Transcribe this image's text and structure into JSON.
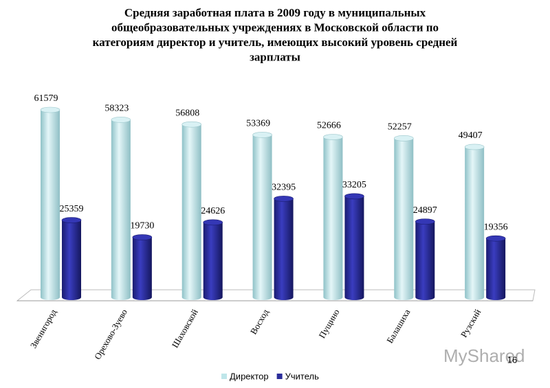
{
  "chart_data": {
    "type": "bar",
    "title": [
      "Средняя заработная плата в 2009 году в муниципальных",
      "общеобразовательных учреждениях в Московской области по",
      "категориям директор и учитель, имеющих высокий уровень средней",
      "зарплаты"
    ],
    "categories": [
      "Звенигород",
      "Орехово-Зуево",
      "Шаховской",
      "Восход",
      "Пущино",
      "Балашиха",
      "Рузский"
    ],
    "series": [
      {
        "name": "Директор",
        "color": "#bfe6ea",
        "values": [
          61579,
          58323,
          56808,
          53369,
          52666,
          52257,
          49407
        ]
      },
      {
        "name": "Учитель",
        "color": "#2b2d9a",
        "values": [
          25359,
          19730,
          24626,
          32395,
          33205,
          24897,
          19356
        ]
      }
    ],
    "page_number": "16",
    "watermark": "MyShared"
  }
}
